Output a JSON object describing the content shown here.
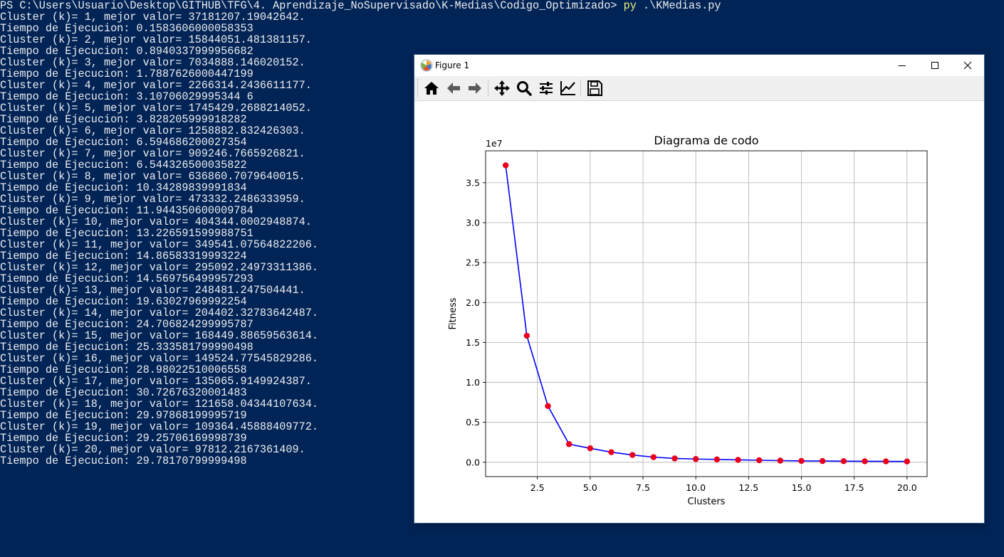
{
  "terminal": {
    "prompt": "PS C:\\Users\\Usuario\\Desktop\\GITHUB\\TFG\\4. Aprendizaje_NoSupervisado\\K-Medias\\Codigo_Optimizado> ",
    "command_exe": "py",
    "command_args": " .\\KMedias.py",
    "lines": [
      "Cluster (k)= 1, mejor valor= 37181207.19042642.",
      "Tiempo de Ejecucion: 0.1583606000058353",
      "Cluster (k)= 2, mejor valor= 15844051.481381157.",
      "Tiempo de Ejecucion: 0.8940337999956682",
      "Cluster (k)= 3, mejor valor= 7034888.146020152.",
      "Tiempo de Ejecucion: 1.7887626000447199",
      "Cluster (k)= 4, mejor valor= 2266314.2436611177.",
      "Tiempo de Ejecucion: 3.10706029995344 6",
      "Cluster (k)= 5, mejor valor= 1745429.2688214052.",
      "Tiempo de Ejecucion: 3.828205999918282",
      "Cluster (k)= 6, mejor valor= 1258882.832426303.",
      "Tiempo de Ejecucion: 6.594686200027354",
      "Cluster (k)= 7, mejor valor= 909246.7665926821.",
      "Tiempo de Ejecucion: 6.544326500035822",
      "Cluster (k)= 8, mejor valor= 636860.7079640015.",
      "Tiempo de Ejecucion: 10.34289839991834",
      "Cluster (k)= 9, mejor valor= 473332.2486333959.",
      "Tiempo de Ejecucion: 11.944350600009784",
      "Cluster (k)= 10, mejor valor= 404344.0002948874.",
      "Tiempo de Ejecucion: 13.226591599988751",
      "Cluster (k)= 11, mejor valor= 349541.07564822206.",
      "Tiempo de Ejecucion: 14.86583319993224",
      "Cluster (k)= 12, mejor valor= 295092.24973311386.",
      "Tiempo de Ejecucion: 14.569756499957293",
      "Cluster (k)= 13, mejor valor= 248481.247504441.",
      "Tiempo de Ejecucion: 19.63027969992254",
      "Cluster (k)= 14, mejor valor= 204402.32783642487.",
      "Tiempo de Ejecucion: 24.706824299995787",
      "Cluster (k)= 15, mejor valor= 168449.88659563614.",
      "Tiempo de Ejecucion: 25.333581799990498",
      "Cluster (k)= 16, mejor valor= 149524.77545829286.",
      "Tiempo de Ejecucion: 28.98022510006558",
      "Cluster (k)= 17, mejor valor= 135065.9149924387.",
      "Tiempo de Ejecucion: 30.72676320001483",
      "Cluster (k)= 18, mejor valor= 121658.04344107634.",
      "Tiempo de Ejecucion: 29.97868199995719",
      "Cluster (k)= 19, mejor valor= 109364.45888409772.",
      "Tiempo de Ejecucion: 29.25706169998739",
      "Cluster (k)= 20, mejor valor= 97812.2167361409.",
      "Tiempo de Ejecucion: 29.78170799999498"
    ]
  },
  "figure_window": {
    "title": "Figure 1",
    "controls": {
      "minimize_icon": "minimize-icon",
      "maximize_icon": "maximize-icon",
      "close_icon": "close-icon"
    },
    "toolbar": [
      {
        "name": "home-button",
        "icon": "home-icon"
      },
      {
        "name": "back-button",
        "icon": "arrow-left-icon"
      },
      {
        "name": "forward-button",
        "icon": "arrow-right-icon"
      },
      {
        "name": "pan-button",
        "icon": "move-icon"
      },
      {
        "name": "zoom-button",
        "icon": "magnifier-icon"
      },
      {
        "name": "subplots-button",
        "icon": "sliders-icon"
      },
      {
        "name": "customize-button",
        "icon": "line-chart-icon"
      },
      {
        "name": "save-button",
        "icon": "floppy-disk-icon"
      }
    ]
  },
  "colors": {
    "terminal_bg": "#012456",
    "terminal_text": "#eeedf0",
    "command_highlight": "#f3f07a",
    "line": "#0000ff",
    "marker": "#e8001c",
    "grid": "#b0b0b0"
  },
  "chart_data": {
    "type": "line",
    "title": "Diagrama de codo",
    "xlabel": "Clusters",
    "ylabel": "Fitness",
    "offset_text": "1e7",
    "grid": true,
    "xlim": [
      0.05,
      20.95
    ],
    "ylim": [
      -1.8,
      39.0
    ],
    "y_scale": 10000000,
    "xticks": [
      2.5,
      5.0,
      7.5,
      10.0,
      12.5,
      15.0,
      17.5,
      20.0
    ],
    "xtick_labels": [
      "2.5",
      "5.0",
      "7.5",
      "10.0",
      "12.5",
      "15.0",
      "17.5",
      "20.0"
    ],
    "yticks": [
      0.0,
      0.5,
      1.0,
      1.5,
      2.0,
      2.5,
      3.0,
      3.5
    ],
    "ytick_labels": [
      "0.0",
      "0.5",
      "1.0",
      "1.5",
      "2.0",
      "2.5",
      "3.0",
      "3.5"
    ],
    "series": [
      {
        "x": [
          1,
          2,
          3,
          4,
          5,
          6,
          7,
          8,
          9,
          10,
          11,
          12,
          13,
          14,
          15,
          16,
          17,
          18,
          19,
          20
        ],
        "y": [
          3.7181,
          1.5844,
          0.7035,
          0.2266,
          0.1745,
          0.1259,
          0.0909,
          0.0637,
          0.0473,
          0.0404,
          0.035,
          0.0295,
          0.0248,
          0.0204,
          0.0168,
          0.015,
          0.0135,
          0.0122,
          0.0109,
          0.0098
        ]
      }
    ]
  }
}
